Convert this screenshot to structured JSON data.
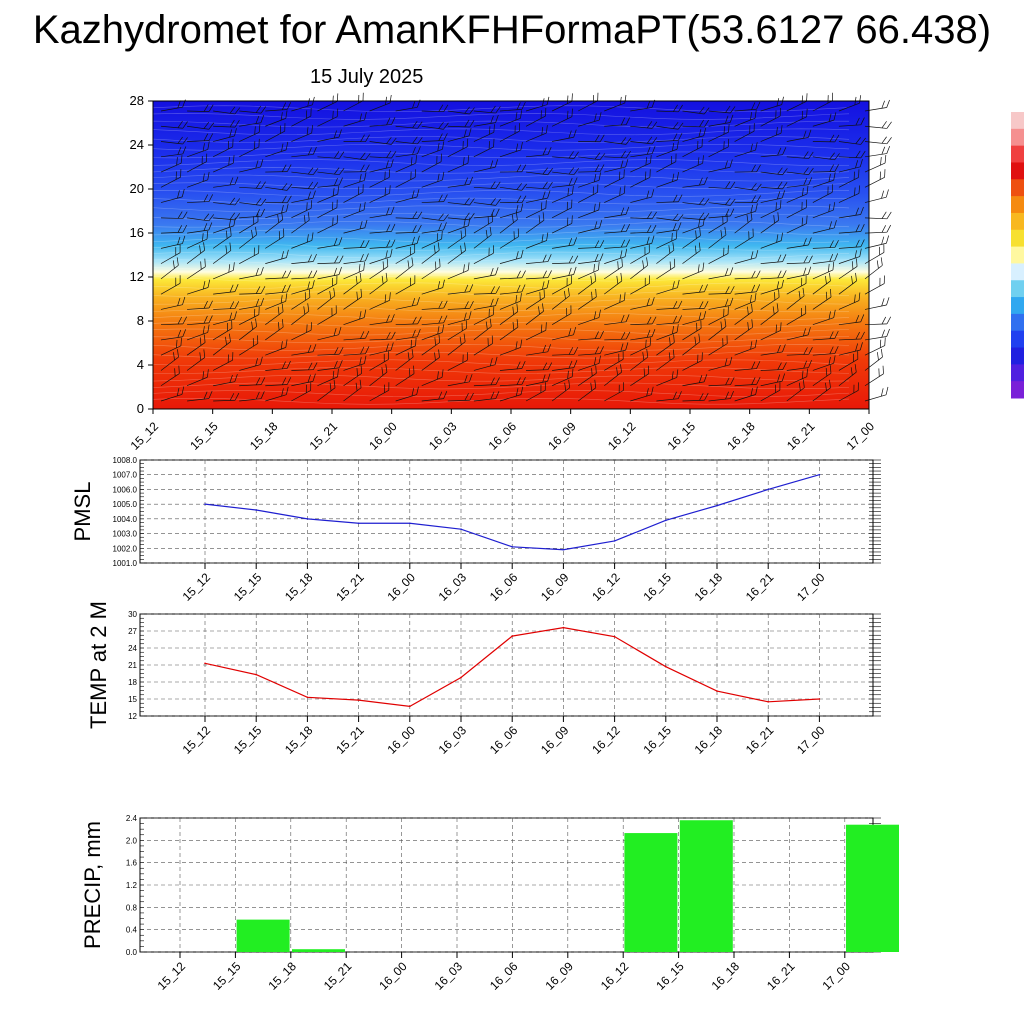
{
  "page": {
    "title": "Kazhydromet for AmanKFHFormaPT(53.6127 66.438)",
    "date": "15 July 2025"
  },
  "chart_data": [
    {
      "type": "heatmap",
      "name": "vertical-profile",
      "x": [
        "15_12",
        "15_15",
        "15_18",
        "15_21",
        "16_00",
        "16_03",
        "16_06",
        "16_09",
        "16_12",
        "16_15",
        "16_18",
        "16_21",
        "17_00"
      ],
      "yticks": [
        0,
        4,
        8,
        12,
        16,
        20,
        24,
        28
      ],
      "ylim": [
        0,
        28
      ],
      "note_colormap": "warm (red/orange/yellow) near surface, cool (cyan/blue) aloft, with wind barbs"
    },
    {
      "type": "line",
      "ylabel": "PMSL",
      "x": [
        "15_12",
        "15_15",
        "15_18",
        "15_21",
        "16_00",
        "16_03",
        "16_06",
        "16_09",
        "16_12",
        "16_15",
        "16_18",
        "16_21",
        "17_00"
      ],
      "values": [
        1005.0,
        1004.6,
        1004.0,
        1003.7,
        1003.7,
        1003.3,
        1002.1,
        1001.9,
        1002.5,
        1003.9,
        1004.9,
        1006.0,
        1007.0
      ],
      "ylim": [
        1001.0,
        1008.0
      ],
      "yticks": [
        "1001.0",
        "1002.0",
        "1003.0",
        "1004.0",
        "1005.0",
        "1006.0",
        "1007.0",
        "1008.0"
      ],
      "color": "#1f1fd0"
    },
    {
      "type": "line",
      "ylabel": "TEMP at 2 M",
      "x": [
        "15_12",
        "15_15",
        "15_18",
        "15_21",
        "16_00",
        "16_03",
        "16_06",
        "16_09",
        "16_12",
        "16_15",
        "16_18",
        "16_21",
        "17_00"
      ],
      "values": [
        21.3,
        19.3,
        15.3,
        14.8,
        13.7,
        18.8,
        26.1,
        27.6,
        26.0,
        20.7,
        16.4,
        14.5,
        15.0
      ],
      "ylim": [
        12,
        30
      ],
      "yticks": [
        "12",
        "15",
        "18",
        "21",
        "24",
        "27",
        "30"
      ],
      "color": "#e00000"
    },
    {
      "type": "bar",
      "ylabel": "PRECIP, mm",
      "x": [
        "15_12",
        "15_15",
        "15_18",
        "15_21",
        "16_00",
        "16_03",
        "16_06",
        "16_09",
        "16_12",
        "16_15",
        "16_18",
        "16_21",
        "17_00"
      ],
      "values": [
        0.0,
        0.58,
        0.05,
        0.0,
        0.0,
        0.0,
        0.0,
        0.0,
        2.13,
        2.36,
        0.0,
        0.0,
        2.28
      ],
      "ylim": [
        0.0,
        2.4
      ],
      "yticks": [
        "0.0",
        "0.4",
        "0.8",
        "1.2",
        "1.6",
        "2.0",
        "2.4"
      ],
      "color": "#22ee22"
    }
  ],
  "colorbar": {
    "colors": [
      "#f7c8c8",
      "#f59090",
      "#f04040",
      "#e01010",
      "#ee5010",
      "#f58a10",
      "#f8b820",
      "#f7e030",
      "#fff8a0",
      "#d8f0ff",
      "#70d0f0",
      "#30a8f0",
      "#3070f0",
      "#2040f0",
      "#2020e0",
      "#5020e0",
      "#7a20d8"
    ]
  }
}
